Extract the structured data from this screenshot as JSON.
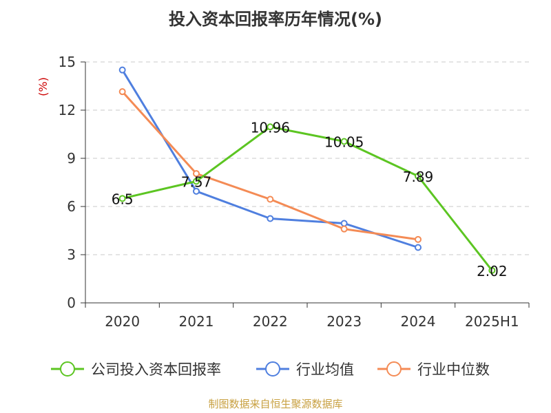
{
  "chart_data": {
    "type": "line",
    "title": "投入资本回报率历年情况(%)",
    "ylabel": "(%)",
    "xlabel": "",
    "categories": [
      "2020",
      "2021",
      "2022",
      "2023",
      "2024",
      "2025H1"
    ],
    "ylim": [
      0,
      15
    ],
    "yticks": [
      0,
      3,
      6,
      9,
      12,
      15
    ],
    "grid": true,
    "legend_position": "bottom",
    "series": [
      {
        "name": "公司投入资本回报率",
        "color": "#5cc522",
        "values": [
          6.5,
          7.57,
          10.96,
          10.05,
          7.89,
          2.02
        ],
        "labels": [
          "6.5",
          "7.57",
          "10.96",
          "10.05",
          "7.89",
          "2.02"
        ]
      },
      {
        "name": "行业均值",
        "color": "#4f7fdf",
        "values": [
          14.5,
          6.95,
          5.25,
          4.95,
          3.45,
          null
        ]
      },
      {
        "name": "行业中位数",
        "color": "#f48b55",
        "values": [
          13.15,
          8.05,
          6.45,
          4.6,
          3.95,
          null
        ]
      }
    ]
  },
  "source": "制图数据来自恒生聚源数据库"
}
